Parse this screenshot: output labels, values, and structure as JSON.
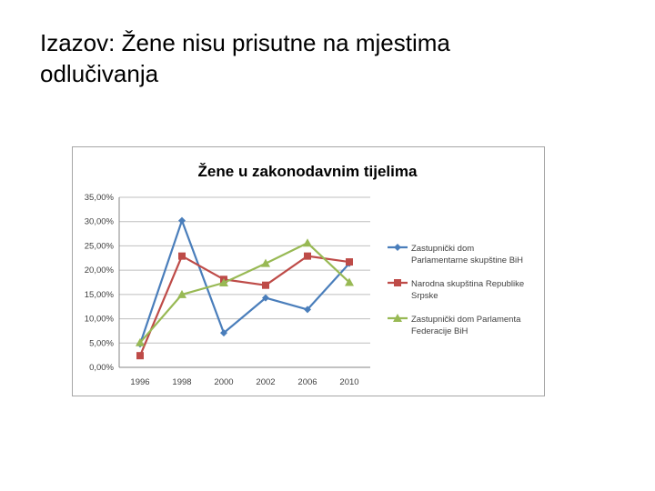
{
  "slide": {
    "title_line1": "Izazov: Žene nisu prisutne na mjestima",
    "title_line2": "odlučivanja"
  },
  "chart_data": {
    "type": "line",
    "title": "Žene u zakonodavnim tijelima",
    "xlabel": "",
    "ylabel": "",
    "categories": [
      "1996",
      "1998",
      "2000",
      "2002",
      "2006",
      "2010"
    ],
    "ylim": [
      0,
      35
    ],
    "yticks": [
      "0,00%",
      "5,00%",
      "10,00%",
      "15,00%",
      "20,00%",
      "25,00%",
      "30,00%",
      "35,00%"
    ],
    "grid": true,
    "legend_position": "right",
    "series": [
      {
        "name": "Zastupnički dom Parlamentarne skupštine BiH",
        "legend_lines": [
          "Zastupnički dom",
          "Parlamentarne skupštine BiH"
        ],
        "marker": "diamond",
        "color": "#4a7ebb",
        "values": [
          4.8,
          30.2,
          7.1,
          14.3,
          11.9,
          21.4
        ]
      },
      {
        "name": "Narodna skupština Republike Srpske",
        "legend_lines": [
          "Narodna skupština Republike",
          "Srpske"
        ],
        "marker": "square",
        "color": "#be4b48",
        "values": [
          2.4,
          22.9,
          18.1,
          16.9,
          22.9,
          21.7
        ]
      },
      {
        "name": "Zastupnički dom Parlamenta Federacije BiH",
        "legend_lines": [
          "Zastupnički dom Parlamenta",
          "Federacije BiH"
        ],
        "marker": "triangle",
        "color": "#98b954",
        "values": [
          5.1,
          15.0,
          17.4,
          21.4,
          25.6,
          17.5
        ]
      }
    ]
  }
}
